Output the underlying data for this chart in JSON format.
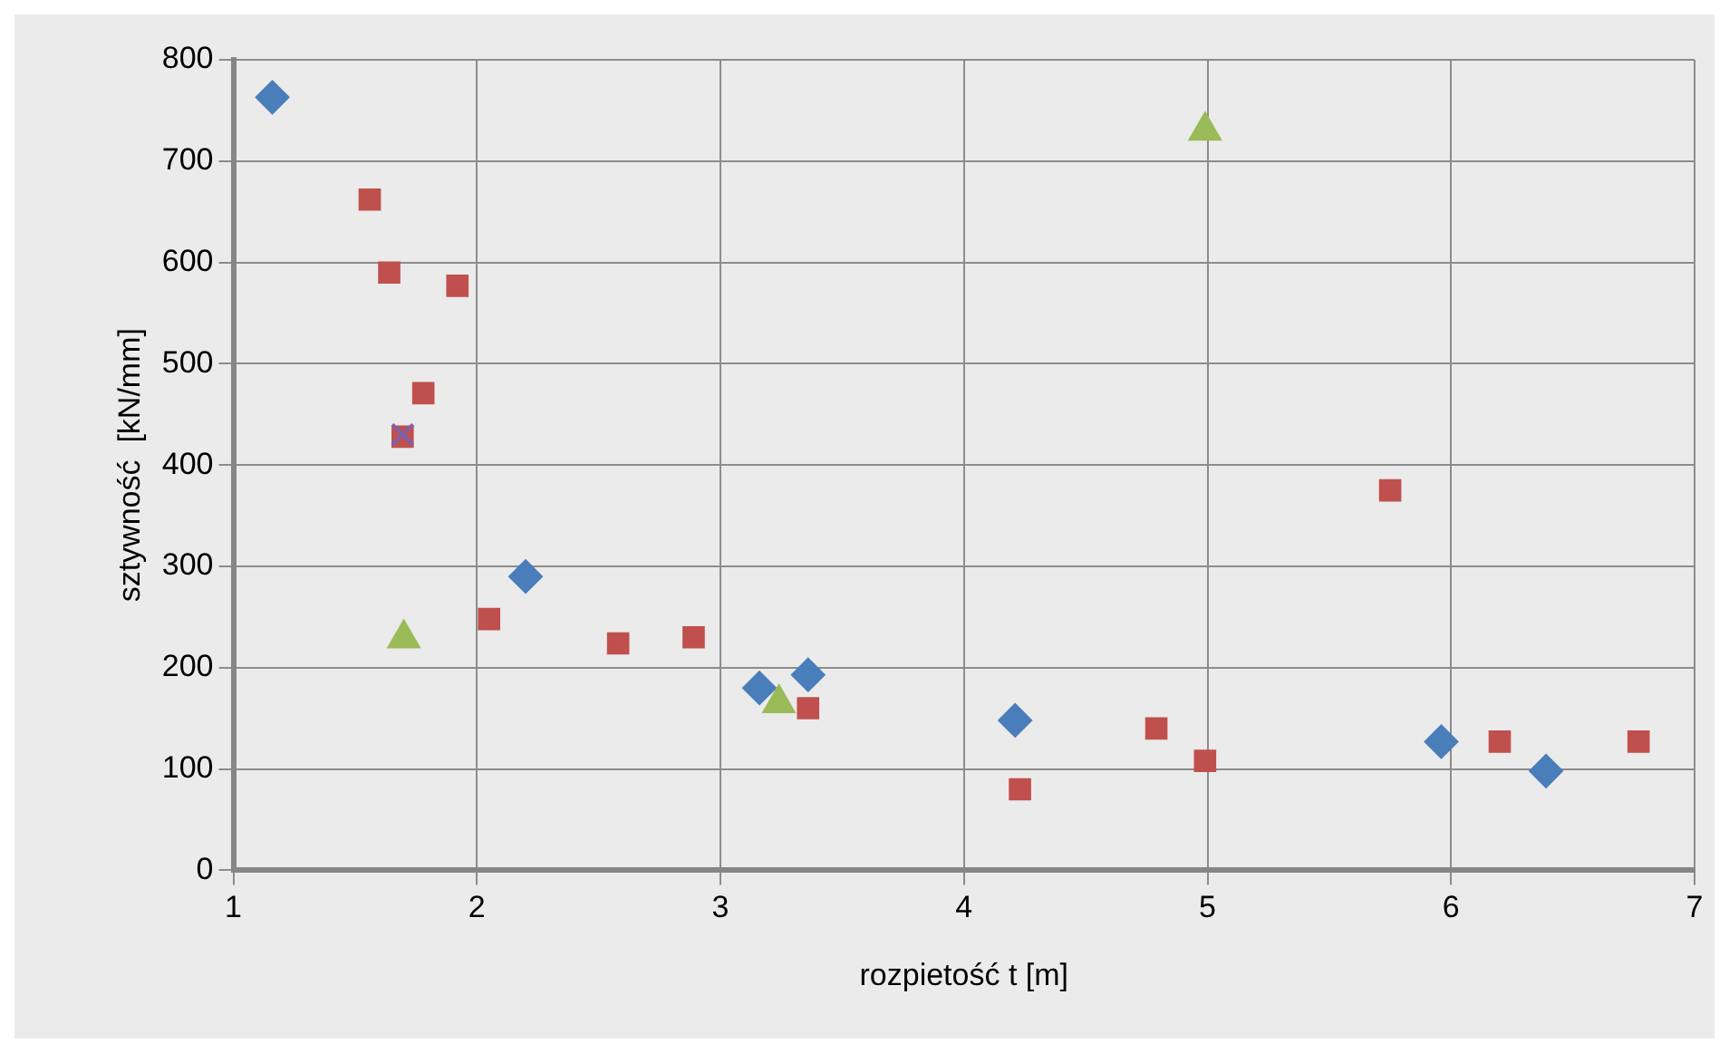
{
  "chart_data": {
    "type": "scatter",
    "xlabel": "rozpietość t [m]",
    "ylabel": "sztywność  [kN/mm]",
    "xlim": [
      1,
      7
    ],
    "xticks": [
      1,
      2,
      3,
      4,
      5,
      6,
      7
    ],
    "ylim": [
      0,
      800
    ],
    "yticks": [
      0,
      100,
      200,
      300,
      400,
      500,
      600,
      700,
      800
    ],
    "grid": true,
    "legend": false,
    "series": [
      {
        "color": "#4a7ebb",
        "marker": "diamond",
        "x": [
          1.16,
          2.2,
          3.16,
          3.36,
          4.21,
          5.96,
          6.39
        ],
        "values": [
          763,
          290,
          180,
          193,
          148,
          127,
          98
        ]
      },
      {
        "color": "#c0504d",
        "marker": "square",
        "x": [
          1.56,
          1.64,
          1.92,
          1.78,
          1.695,
          2.05,
          2.58,
          2.89,
          3.36,
          4.23,
          4.79,
          4.99,
          5.75,
          6.2,
          6.77
        ],
        "values": [
          662,
          590,
          577,
          471,
          428,
          248,
          224,
          230,
          160,
          80,
          140,
          108,
          375,
          127,
          127
        ]
      },
      {
        "color": "#9bbb59",
        "marker": "triangle",
        "x": [
          1.7,
          3.24,
          4.99
        ],
        "values": [
          229,
          165,
          730
        ]
      },
      {
        "color": "#7f60a8",
        "marker": "cross",
        "x": [
          1.695
        ],
        "values": [
          430
        ]
      }
    ]
  }
}
